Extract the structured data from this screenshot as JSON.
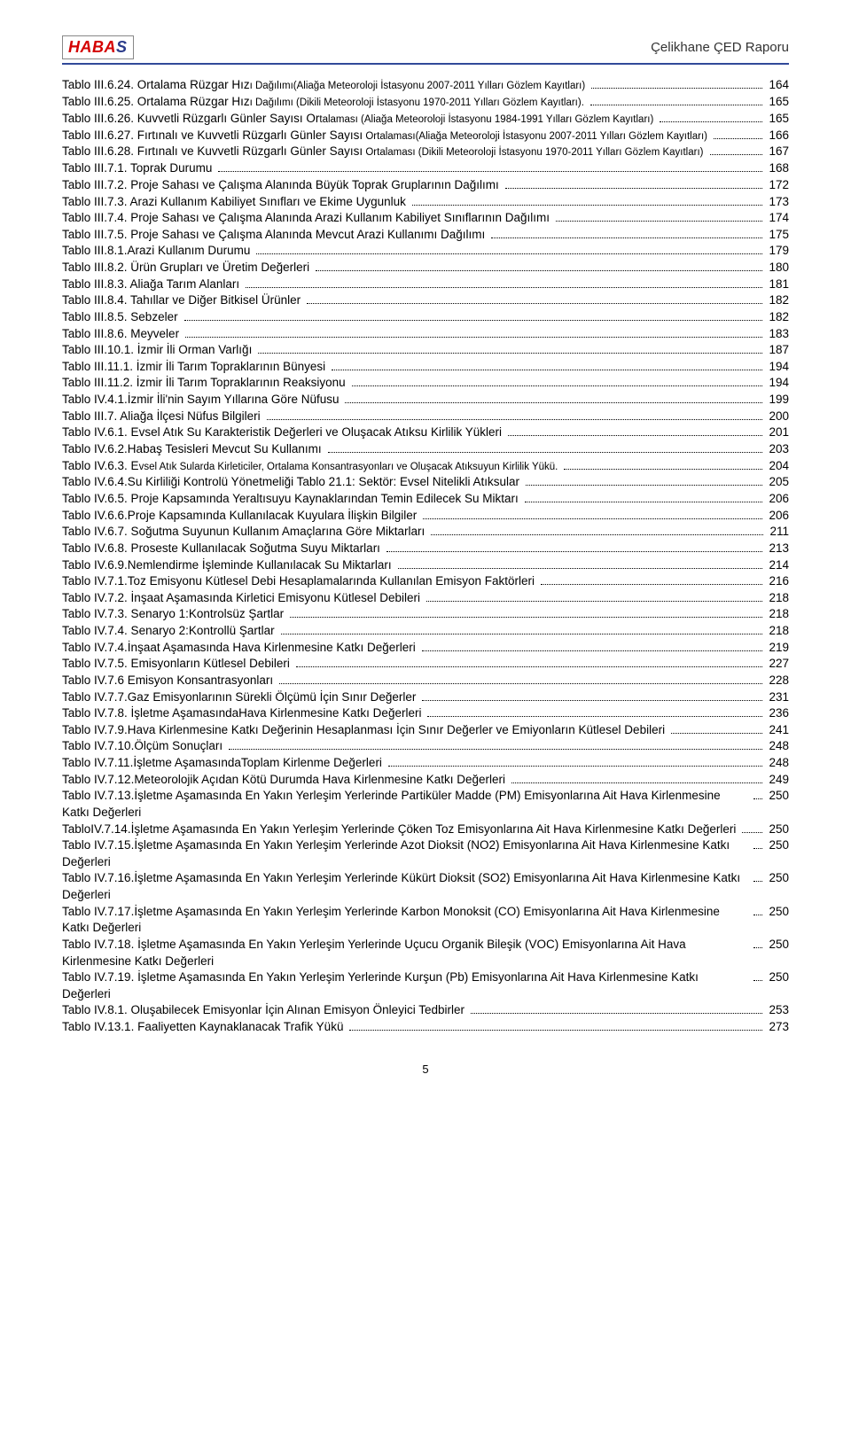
{
  "header": {
    "logo_text_1": "HABA",
    "logo_text_2": "S",
    "doc_title": "Çelikhane ÇED Raporu"
  },
  "toc": [
    {
      "label": "Tablo III.6.24. Ortalama Rüzgar Hızı Dağılımı(Aliağa Meteoroloji İstasyonu 2007-2011 Yılları Gözlem Kayıtları)",
      "page": "164",
      "small_start": 35
    },
    {
      "label": "Tablo III.6.25. Ortalama Rüzgar Hızı Dağılımı (Dikili Meteoroloji İstasyonu 1970-2011 Yılları Gözlem Kayıtları).",
      "page": "165",
      "small_start": 35
    },
    {
      "label": "Tablo III.6.26. Kuvvetli Rüzgarlı Günler Sayısı Ortalaması (Aliağa Meteoroloji İstasyonu 1984-1991 Yılları Gözlem Kayıtları)",
      "page": "165",
      "small_start": 50
    },
    {
      "label": "Tablo III.6.27. Fırtınalı ve Kuvvetli Rüzgarlı Günler Sayısı Ortalaması(Aliağa Meteoroloji İstasyonu 2007-2011 Yılları Gözlem Kayıtları)",
      "page": "166",
      "small_start": 60
    },
    {
      "label": "Tablo III.6.28. Fırtınalı ve Kuvvetli Rüzgarlı Günler Sayısı Ortalaması (Dikili Meteoroloji İstasyonu 1970-2011 Yılları Gözlem Kayıtları)",
      "page": "167",
      "small_start": 60
    },
    {
      "label": "Tablo III.7.1. Toprak Durumu",
      "page": "168"
    },
    {
      "label": "Tablo III.7.2. Proje Sahası ve Çalışma Alanında Büyük Toprak Gruplarının Dağılımı",
      "page": "172"
    },
    {
      "label": "Tablo III.7.3. Arazi Kullanım Kabiliyet Sınıfları ve Ekime Uygunluk",
      "page": "173"
    },
    {
      "label": "Tablo III.7.4. Proje Sahası ve Çalışma Alanında Arazi Kullanım Kabiliyet Sınıflarının Dağılımı",
      "page": "174"
    },
    {
      "label": "Tablo III.7.5. Proje Sahası ve Çalışma Alanında Mevcut Arazi Kullanımı Dağılımı",
      "page": "175"
    },
    {
      "label": "Tablo III.8.1.Arazi Kullanım Durumu",
      "page": "179"
    },
    {
      "label": "Tablo III.8.2. Ürün Grupları ve Üretim Değerleri",
      "page": "180"
    },
    {
      "label": "Tablo III.8.3. Aliağa Tarım Alanları",
      "page": "181"
    },
    {
      "label": "Tablo III.8.4. Tahıllar ve Diğer Bitkisel Ürünler",
      "page": "182"
    },
    {
      "label": "Tablo III.8.5. Sebzeler",
      "page": "182"
    },
    {
      "label": "Tablo III.8.6. Meyveler",
      "page": "183"
    },
    {
      "label": "Tablo III.10.1. İzmir İli Orman Varlığı",
      "page": "187"
    },
    {
      "label": "Tablo III.11.1.  İzmir İli Tarım Topraklarının Bünyesi",
      "page": "194"
    },
    {
      "label": "Tablo III.11.2. İzmir İli Tarım Topraklarının Reaksiyonu",
      "page": "194"
    },
    {
      "label": "Tablo IV.4.1.İzmir İli'nin Sayım Yıllarına Göre Nüfusu",
      "page": "199"
    },
    {
      "label": "Tablo III.7.  Aliağa İlçesi Nüfus Bilgileri",
      "page": "200"
    },
    {
      "label": "Tablo IV.6.1. Evsel Atık Su Karakteristik Değerleri ve Oluşacak Atıksu Kirlilik Yükleri",
      "page": "201"
    },
    {
      "label": "Tablo IV.6.2.Habaş Tesisleri Mevcut Su Kullanımı",
      "page": "203"
    },
    {
      "label": "Tablo IV.6.3. Evsel Atık Sularda Kirleticiler, Ortalama Konsantrasyonları ve Oluşacak Atıksuyun Kirlilik Yükü.",
      "page": "204",
      "small_start": 15
    },
    {
      "label": "Tablo IV.6.4.Su Kirliliği Kontrolü Yönetmeliği Tablo 21.1: Sektör: Evsel Nitelikli Atıksular",
      "page": "205"
    },
    {
      "label": "Tablo IV.6.5. Proje Kapsamında Yeraltısuyu Kaynaklarından Temin Edilecek Su Miktarı",
      "page": "206"
    },
    {
      "label": "Tablo IV.6.6.Proje Kapsamında Kullanılacak Kuyulara İlişkin Bilgiler",
      "page": "206"
    },
    {
      "label": "Tablo IV.6.7. Soğutma Suyunun Kullanım Amaçlarına Göre Miktarları",
      "page": "211"
    },
    {
      "label": "Tablo IV.6.8. Proseste Kullanılacak Soğutma Suyu Miktarları",
      "page": "213"
    },
    {
      "label": "Tablo IV.6.9.Nemlendirme İşleminde Kullanılacak Su Miktarları",
      "page": "214"
    },
    {
      "label": "Tablo IV.7.1.Toz Emisyonu Kütlesel Debi Hesaplamalarında Kullanılan Emisyon Faktörleri",
      "page": "216"
    },
    {
      "label": "Tablo IV.7.2. İnşaat Aşamasında Kirletici Emisyonu Kütlesel Debileri",
      "page": "218"
    },
    {
      "label": "Tablo IV.7.3. Senaryo 1:Kontrolsüz Şartlar",
      "page": "218"
    },
    {
      "label": "Tablo IV.7.4. Senaryo 2:Kontrollü Şartlar",
      "page": "218"
    },
    {
      "label": "Tablo IV.7.4.İnşaat Aşamasında Hava Kirlenmesine Katkı Değerleri",
      "page": "219"
    },
    {
      "label": "Tablo IV.7.5. Emisyonların Kütlesel Debileri",
      "page": "227"
    },
    {
      "label": "Tablo IV.7.6 Emisyon Konsantrasyonları",
      "page": "228"
    },
    {
      "label": "Tablo IV.7.7.Gaz Emisyonlarının Sürekli Ölçümü İçin Sınır Değerler",
      "page": "231"
    },
    {
      "label": "Tablo IV.7.8. İşletme AşamasındaHava Kirlenmesine Katkı Değerleri",
      "page": "236"
    },
    {
      "label": "Tablo IV.7.9.Hava Kirlenmesine Katkı Değerinin Hesaplanması İçin Sınır Değerler ve Emiyonların Kütlesel Debileri",
      "page": "241"
    },
    {
      "label": "Tablo IV.7.10.Ölçüm Sonuçları",
      "page": "248"
    },
    {
      "label": "Tablo IV.7.11.İşletme AşamasındaToplam Kirlenme Değerleri",
      "page": "248"
    },
    {
      "label": "Tablo IV.7.12.Meteorolojik Açıdan Kötü Durumda Hava Kirlenmesine Katkı Değerleri",
      "page": "249"
    },
    {
      "label": "Tablo IV.7.13.İşletme Aşamasında En Yakın Yerleşim Yerlerinde Partiküler Madde (PM) Emisyonlarına Ait Hava Kirlenmesine Katkı Değerleri",
      "page": "250"
    },
    {
      "label": "TabloIV.7.14.İşletme Aşamasında En Yakın Yerleşim Yerlerinde Çöken Toz Emisyonlarına Ait Hava Kirlenmesine Katkı Değerleri",
      "page": "250"
    },
    {
      "label": "Tablo IV.7.15.İşletme Aşamasında En Yakın Yerleşim Yerlerinde Azot Dioksit (NO2) Emisyonlarına Ait Hava Kirlenmesine Katkı Değerleri",
      "page": "250"
    },
    {
      "label": "Tablo IV.7.16.İşletme Aşamasında En Yakın Yerleşim Yerlerinde Kükürt Dioksit (SO2) Emisyonlarına Ait Hava Kirlenmesine Katkı Değerleri",
      "page": "250"
    },
    {
      "label": "Tablo IV.7.17.İşletme Aşamasında En Yakın Yerleşim Yerlerinde Karbon Monoksit (CO) Emisyonlarına Ait Hava Kirlenmesine Katkı Değerleri",
      "page": "250"
    },
    {
      "label": "Tablo IV.7.18. İşletme Aşamasında En Yakın Yerleşim Yerlerinde Uçucu Organik Bileşik (VOC) Emisyonlarına Ait Hava Kirlenmesine Katkı Değerleri",
      "page": "250"
    },
    {
      "label": "Tablo IV.7.19. İşletme Aşamasında En Yakın Yerleşim Yerlerinde Kurşun (Pb) Emisyonlarına Ait Hava Kirlenmesine Katkı Değerleri",
      "page": "250"
    },
    {
      "label": "Tablo IV.8.1. Oluşabilecek Emisyonlar İçin Alınan Emisyon Önleyici Tedbirler",
      "page": "253"
    },
    {
      "label": "Tablo IV.13.1. Faaliyetten Kaynaklanacak Trafik Yükü",
      "page": "273"
    }
  ],
  "footer": {
    "page_number": "5"
  }
}
